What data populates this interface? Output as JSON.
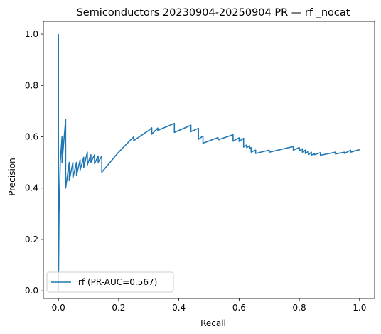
{
  "chart_data": {
    "type": "line",
    "title": "Semiconductors 20230904-20250904 PR — rf _nocat",
    "xlabel": "Recall",
    "ylabel": "Precision",
    "xlim": [
      -0.05,
      1.05
    ],
    "ylim": [
      -0.03,
      1.05
    ],
    "xticks": [
      0.0,
      0.2,
      0.4,
      0.6,
      0.8,
      1.0
    ],
    "xtick_labels": [
      "0.0",
      "0.2",
      "0.4",
      "0.6",
      "0.8",
      "1.0"
    ],
    "yticks": [
      0.0,
      0.2,
      0.4,
      0.6,
      0.8,
      1.0
    ],
    "ytick_labels": [
      "0.0",
      "0.2",
      "0.4",
      "0.6",
      "0.8",
      "1.0"
    ],
    "grid": false,
    "legend_position": "lower-left",
    "series": [
      {
        "name": "rf (PR-AUC=0.567)",
        "color": "#1f77b4",
        "x": [
          0.0,
          0.0,
          0.0,
          0.002,
          0.004,
          0.006,
          0.012,
          0.012,
          0.024,
          0.024,
          0.036,
          0.036,
          0.048,
          0.048,
          0.06,
          0.06,
          0.072,
          0.072,
          0.084,
          0.084,
          0.096,
          0.096,
          0.108,
          0.108,
          0.12,
          0.12,
          0.132,
          0.132,
          0.144,
          0.144,
          0.2,
          0.25,
          0.25,
          0.3,
          0.31,
          0.31,
          0.32,
          0.33,
          0.33,
          0.385,
          0.385,
          0.44,
          0.44,
          0.465,
          0.465,
          0.48,
          0.48,
          0.53,
          0.53,
          0.58,
          0.58,
          0.6,
          0.6,
          0.615,
          0.615,
          0.625,
          0.625,
          0.635,
          0.635,
          0.64,
          0.64,
          0.655,
          0.655,
          0.7,
          0.7,
          0.78,
          0.78,
          0.8,
          0.8,
          0.81,
          0.81,
          0.82,
          0.82,
          0.83,
          0.83,
          0.84,
          0.84,
          0.85,
          0.85,
          0.87,
          0.87,
          0.92,
          0.92,
          0.95,
          0.95,
          0.97,
          0.97,
          1.0
        ],
        "y": [
          1.0,
          0.5,
          0.0,
          0.3,
          0.4,
          0.5,
          0.6,
          0.5,
          0.667,
          0.4,
          0.5,
          0.43,
          0.5,
          0.44,
          0.5,
          0.45,
          0.51,
          0.47,
          0.52,
          0.48,
          0.54,
          0.49,
          0.53,
          0.5,
          0.53,
          0.495,
          0.525,
          0.5,
          0.525,
          0.462,
          0.54,
          0.6,
          0.585,
          0.625,
          0.635,
          0.61,
          0.622,
          0.634,
          0.625,
          0.652,
          0.617,
          0.645,
          0.62,
          0.633,
          0.59,
          0.603,
          0.575,
          0.597,
          0.588,
          0.608,
          0.583,
          0.596,
          0.582,
          0.594,
          0.56,
          0.568,
          0.558,
          0.565,
          0.555,
          0.558,
          0.54,
          0.548,
          0.535,
          0.548,
          0.54,
          0.562,
          0.548,
          0.558,
          0.545,
          0.553,
          0.54,
          0.548,
          0.535,
          0.543,
          0.53,
          0.54,
          0.528,
          0.535,
          0.53,
          0.538,
          0.528,
          0.54,
          0.533,
          0.54,
          0.535,
          0.548,
          0.54,
          0.55
        ]
      }
    ]
  }
}
